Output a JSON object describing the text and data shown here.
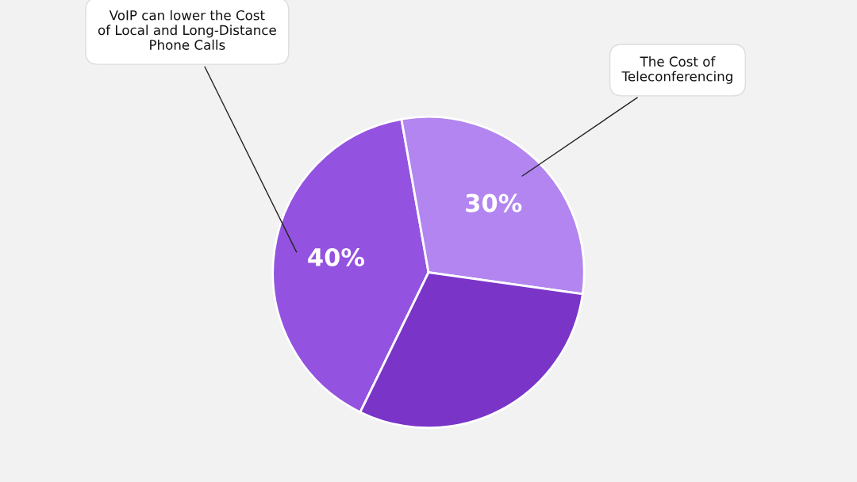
{
  "chart_data": {
    "type": "pie",
    "categories": [
      "VoIP can lower the Cost\nof Local and Long-Distance\nPhone Calls",
      "The Cost of\nTeleconferencing",
      null
    ],
    "values": [
      40,
      30,
      30
    ],
    "colors": [
      "#9452e0",
      "#b285f0",
      "#7a35c8"
    ],
    "value_labels": [
      "40%",
      "30%",
      null
    ],
    "legend": false
  }
}
